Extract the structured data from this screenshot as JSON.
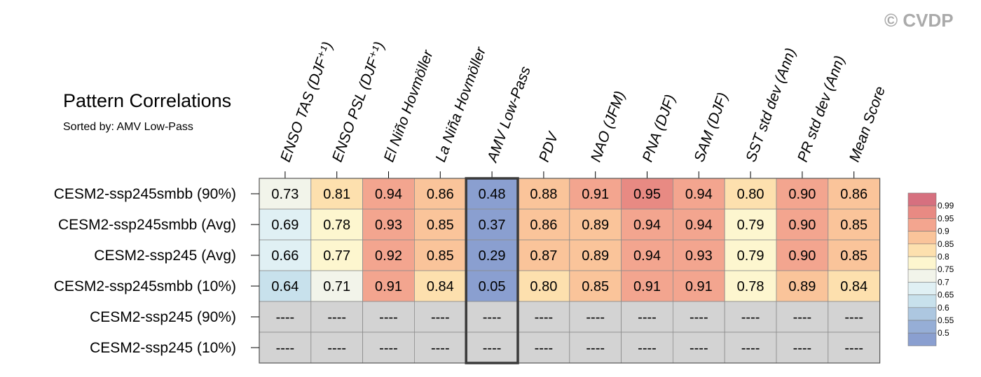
{
  "watermark": "© CVDP",
  "chart_data": {
    "type": "heatmap",
    "title": "Pattern Correlations",
    "subtitle": "Sorted by: AMV Low-Pass",
    "columns": [
      "ENSO TAS (DJF⁺¹)",
      "ENSO PSL (DJF⁺¹)",
      "El Niño Hovmöller",
      "La Niña Hovmöller",
      "AMV Low-Pass",
      "PDV",
      "NAO (JFM)",
      "PNA (DJF)",
      "SAM (DJF)",
      "SST std dev (Ann)",
      "PR std dev (Ann)",
      "Mean Score"
    ],
    "highlighted_column": "AMV Low-Pass",
    "rows": [
      {
        "name": "CESM2-ssp245smbb (90%)",
        "values": [
          0.73,
          0.81,
          0.94,
          0.86,
          0.48,
          0.88,
          0.91,
          0.95,
          0.94,
          0.8,
          0.9,
          0.86
        ]
      },
      {
        "name": "CESM2-ssp245smbb (Avg)",
        "values": [
          0.69,
          0.78,
          0.93,
          0.85,
          0.37,
          0.86,
          0.89,
          0.94,
          0.94,
          0.79,
          0.9,
          0.85
        ]
      },
      {
        "name": "CESM2-ssp245 (Avg)",
        "values": [
          0.66,
          0.77,
          0.92,
          0.85,
          0.29,
          0.87,
          0.89,
          0.94,
          0.93,
          0.79,
          0.9,
          0.85
        ]
      },
      {
        "name": "CESM2-ssp245smbb (10%)",
        "values": [
          0.64,
          0.71,
          0.91,
          0.84,
          0.05,
          0.8,
          0.85,
          0.91,
          0.91,
          0.78,
          0.89,
          0.84
        ]
      },
      {
        "name": "CESM2-ssp245 (90%)",
        "values": [
          null,
          null,
          null,
          null,
          null,
          null,
          null,
          null,
          null,
          null,
          null,
          null
        ]
      },
      {
        "name": "CESM2-ssp245 (10%)",
        "values": [
          null,
          null,
          null,
          null,
          null,
          null,
          null,
          null,
          null,
          null,
          null,
          null
        ]
      }
    ],
    "missing_text": "----",
    "legend": {
      "placement": "right",
      "levels": [
        "0.99",
        "0.95",
        "0.9",
        "0.85",
        "0.8",
        "0.75",
        "0.7",
        "0.65",
        "0.6",
        "0.55",
        "0.5"
      ],
      "colors": [
        "#d6707f",
        "#e88a83",
        "#f3a58f",
        "#fac49a",
        "#fde0ae",
        "#fdf6cf",
        "#f2f4ea",
        "#e0f0f4",
        "#c8e1ec",
        "#adc7e0",
        "#96aed6",
        "#8a9fd0"
      ]
    },
    "missing_color": "#d3d3d3"
  }
}
